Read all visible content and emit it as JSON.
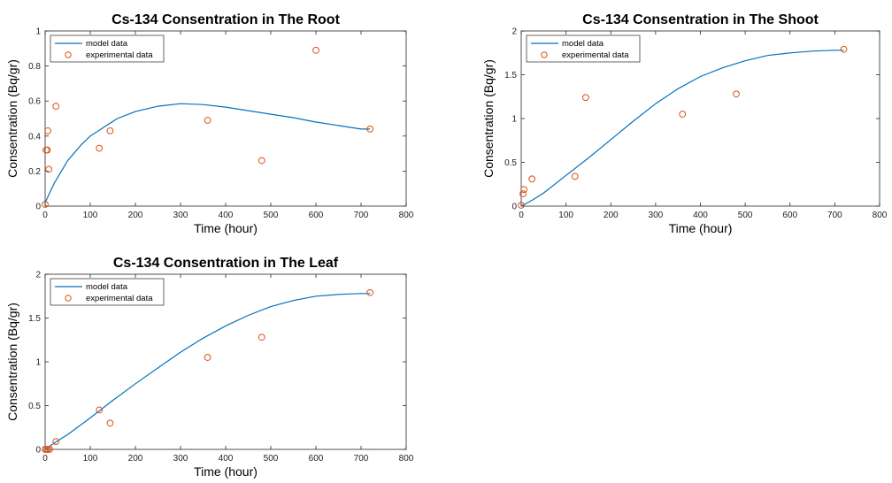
{
  "colors": {
    "model": "#0072BD",
    "experimental": "#D95319",
    "axis": "#262626"
  },
  "chart_data": [
    {
      "id": "root",
      "type": "line",
      "title": "Cs-134 Consentration in The Root",
      "xlabel": "Time (hour)",
      "ylabel": "Consentration (Bq/gr)",
      "xlim": [
        0,
        800
      ],
      "ylim": [
        0,
        1
      ],
      "xticks": [
        "0",
        "100",
        "200",
        "300",
        "400",
        "500",
        "600",
        "700",
        "800"
      ],
      "yticks": [
        "0",
        "0.2",
        "0.4",
        "0.6",
        "0.8",
        "1"
      ],
      "grid": false,
      "legend": {
        "placement": "top-left",
        "entries": [
          "model data",
          "experimental data"
        ]
      },
      "series": [
        {
          "name": "model data",
          "kind": "line",
          "x": [
            0,
            20,
            50,
            80,
            100,
            130,
            160,
            200,
            250,
            300,
            350,
            400,
            450,
            500,
            550,
            600,
            650,
            700,
            720
          ],
          "y": [
            0.02,
            0.13,
            0.26,
            0.35,
            0.4,
            0.45,
            0.5,
            0.54,
            0.57,
            0.585,
            0.58,
            0.565,
            0.545,
            0.525,
            0.505,
            0.48,
            0.46,
            0.44,
            0.44
          ]
        },
        {
          "name": "experimental data",
          "kind": "scatter",
          "x": [
            0,
            2,
            5,
            6,
            8,
            24,
            120,
            144,
            360,
            480,
            600,
            720
          ],
          "y": [
            0.01,
            0.32,
            0.32,
            0.43,
            0.21,
            0.57,
            0.33,
            0.43,
            0.49,
            0.26,
            0.89,
            0.44
          ]
        }
      ]
    },
    {
      "id": "shoot",
      "type": "line",
      "title": "Cs-134 Consentration in The Shoot",
      "xlabel": "Time (hour)",
      "ylabel": "Consentration (Bq/gr)",
      "xlim": [
        0,
        800
      ],
      "ylim": [
        0,
        2
      ],
      "xticks": [
        "0",
        "100",
        "200",
        "300",
        "400",
        "500",
        "600",
        "700",
        "800"
      ],
      "yticks": [
        "0",
        "0.5",
        "1",
        "1.5",
        "2"
      ],
      "grid": false,
      "legend": {
        "placement": "top-left",
        "entries": [
          "model data",
          "experimental data"
        ]
      },
      "series": [
        {
          "name": "model data",
          "kind": "line",
          "x": [
            0,
            25,
            50,
            100,
            150,
            200,
            250,
            300,
            350,
            400,
            450,
            500,
            550,
            600,
            650,
            700,
            720
          ],
          "y": [
            0.0,
            0.07,
            0.15,
            0.35,
            0.55,
            0.76,
            0.97,
            1.17,
            1.34,
            1.48,
            1.58,
            1.66,
            1.72,
            1.75,
            1.77,
            1.78,
            1.78
          ]
        },
        {
          "name": "experimental data",
          "kind": "scatter",
          "x": [
            0,
            4,
            6,
            24,
            120,
            144,
            360,
            480,
            720
          ],
          "y": [
            0.01,
            0.14,
            0.19,
            0.31,
            0.34,
            1.24,
            1.05,
            1.28,
            1.79
          ]
        }
      ]
    },
    {
      "id": "leaf",
      "type": "line",
      "title": "Cs-134 Consentration in The Leaf",
      "xlabel": "Time (hour)",
      "ylabel": "Consentration (Bq/gr)",
      "xlim": [
        0,
        800
      ],
      "ylim": [
        0,
        2
      ],
      "xticks": [
        "0",
        "100",
        "200",
        "300",
        "400",
        "500",
        "600",
        "700",
        "800"
      ],
      "yticks": [
        "0",
        "0.5",
        "1",
        "1.5",
        "2"
      ],
      "grid": false,
      "legend": {
        "placement": "top-left",
        "entries": [
          "model data",
          "experimental data"
        ]
      },
      "series": [
        {
          "name": "model data",
          "kind": "line",
          "x": [
            0,
            25,
            50,
            100,
            150,
            200,
            250,
            300,
            350,
            400,
            450,
            500,
            550,
            600,
            650,
            700,
            720
          ],
          "y": [
            0.0,
            0.09,
            0.17,
            0.36,
            0.56,
            0.75,
            0.93,
            1.11,
            1.27,
            1.41,
            1.53,
            1.63,
            1.7,
            1.75,
            1.77,
            1.78,
            1.78
          ]
        },
        {
          "name": "experimental data",
          "kind": "scatter",
          "x": [
            0,
            3,
            6,
            10,
            24,
            120,
            144,
            360,
            480,
            720
          ],
          "y": [
            0.0,
            0.0,
            0.0,
            0.0,
            0.09,
            0.45,
            0.3,
            1.05,
            1.28,
            1.79
          ]
        }
      ]
    }
  ]
}
